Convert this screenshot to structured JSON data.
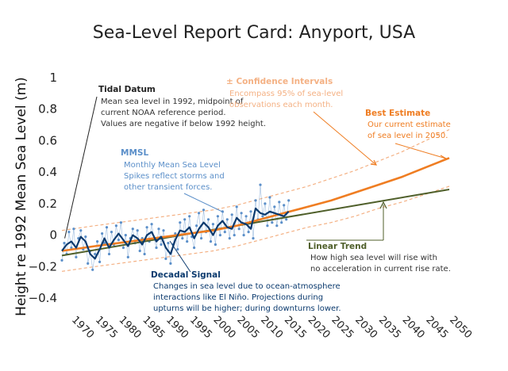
{
  "title": "Sea-Level Report Card: Anyport, USA",
  "colors": {
    "monthly": "#5b8fc9",
    "decadal": "#0b3a6e",
    "best": "#ef7d22",
    "confidence": "#f4b184",
    "trend": "#4f5f2a",
    "tidal": "#222222"
  },
  "annotations": {
    "tidal": {
      "head": "Tidal Datum",
      "lines": [
        "Mean sea level in 1992, midpoint of",
        "current NOAA reference period.",
        "Values are negative if below 1992 height."
      ]
    },
    "confidence": {
      "head": "± Confidence Intervals",
      "lines": [
        "Encompass 95% of sea-level",
        "observations each month."
      ]
    },
    "best": {
      "head": "Best Estimate",
      "lines": [
        "Our current estimate",
        "of sea level in 2050."
      ]
    },
    "mmsl": {
      "head": "MMSL",
      "lines": [
        "Monthly Mean Sea Level",
        "Spikes reflect storms and",
        "other transient forces."
      ]
    },
    "decadal": {
      "head": "Decadal Signal",
      "lines": [
        "Changes in sea level due to ocean-atmosphere",
        "interactions like El Niño. Projections during",
        "upturns will be higher; during downturns lower."
      ]
    },
    "trend": {
      "head": "Linear Trend",
      "lines": [
        "How high sea level will rise with",
        "no acceleration in current rise rate."
      ]
    }
  },
  "chart_data": {
    "type": "line",
    "title": "Sea-Level Report Card: Anyport, USA",
    "xlabel": "",
    "ylabel": "Height re 1992 Mean Sea Level (m)",
    "xlim": [
      1968,
      2050
    ],
    "ylim": [
      -0.45,
      1.0
    ],
    "yticks": [
      -0.4,
      -0.2,
      0,
      0.2,
      0.4,
      0.6,
      0.8,
      1
    ],
    "ytick_labels": [
      "−0.4",
      "−0.2",
      "0",
      "0.2",
      "0.4",
      "0.6",
      "0.8",
      "1"
    ],
    "xticks": [
      1970,
      1975,
      1980,
      1985,
      1990,
      1995,
      2000,
      2005,
      2010,
      2015,
      2020,
      2025,
      2030,
      2035,
      2040,
      2045,
      2050
    ],
    "grid": false,
    "series": [
      {
        "name": "Linear Trend",
        "x": [
          1968,
          2050
        ],
        "y": [
          -0.13,
          0.29
        ]
      },
      {
        "name": "Best Estimate",
        "x": [
          1968,
          1975,
          1980,
          1985,
          1990,
          1995,
          2000,
          2005,
          2010,
          2015,
          2020,
          2025,
          2030,
          2035,
          2040,
          2045,
          2050
        ],
        "y": [
          -0.1,
          -0.07,
          -0.05,
          -0.03,
          -0.01,
          0.01,
          0.03,
          0.06,
          0.1,
          0.14,
          0.18,
          0.22,
          0.27,
          0.32,
          0.37,
          0.43,
          0.49
        ]
      },
      {
        "name": "± Confidence Intervals (upper)",
        "x": [
          1968,
          1975,
          1980,
          1985,
          1990,
          1995,
          2000,
          2005,
          2010,
          2015,
          2020,
          2025,
          2030,
          2035,
          2040,
          2045,
          2050
        ],
        "y": [
          0.03,
          0.06,
          0.08,
          0.1,
          0.12,
          0.14,
          0.16,
          0.19,
          0.23,
          0.27,
          0.31,
          0.36,
          0.41,
          0.47,
          0.53,
          0.6,
          0.67
        ]
      },
      {
        "name": "± Confidence Intervals (lower)",
        "x": [
          1968,
          1975,
          1980,
          1985,
          1990,
          1995,
          2000,
          2005,
          2010,
          2015,
          2020,
          2025,
          2030,
          2035,
          2040,
          2045,
          2050
        ],
        "y": [
          -0.23,
          -0.2,
          -0.18,
          -0.16,
          -0.14,
          -0.12,
          -0.1,
          -0.07,
          -0.03,
          0.01,
          0.05,
          0.08,
          0.12,
          0.17,
          0.21,
          0.26,
          0.31
        ]
      },
      {
        "name": "Decadal Signal",
        "x": [
          1968,
          1969,
          1970,
          1971,
          1972,
          1973,
          1974,
          1975,
          1976,
          1977,
          1978,
          1979,
          1980,
          1981,
          1982,
          1983,
          1984,
          1985,
          1986,
          1987,
          1988,
          1989,
          1990,
          1991,
          1992,
          1993,
          1994,
          1995,
          1996,
          1997,
          1998,
          1999,
          2000,
          2001,
          2002,
          2003,
          2004,
          2005,
          2006,
          2007,
          2008,
          2009,
          2010,
          2011,
          2012,
          2013,
          2014,
          2015,
          2016
        ],
        "y": [
          -0.1,
          -0.06,
          -0.04,
          -0.08,
          -0.01,
          -0.04,
          -0.12,
          -0.15,
          -0.09,
          -0.02,
          -0.08,
          -0.03,
          0.01,
          -0.03,
          -0.07,
          0.0,
          -0.02,
          -0.06,
          0.0,
          0.02,
          -0.04,
          -0.01,
          -0.08,
          -0.12,
          -0.03,
          0.03,
          0.02,
          0.05,
          -0.02,
          0.04,
          0.08,
          0.05,
          0.0,
          0.06,
          0.09,
          0.05,
          0.04,
          0.11,
          0.08,
          0.07,
          0.04,
          0.17,
          0.14,
          0.13,
          0.15,
          0.14,
          0.13,
          0.12,
          0.15
        ]
      },
      {
        "name": "MMSL",
        "x": [
          1968,
          1968.5,
          1969,
          1969.5,
          1970,
          1970.5,
          1971,
          1971.5,
          1972,
          1972.5,
          1973,
          1973.5,
          1974,
          1974.5,
          1975,
          1975.5,
          1976,
          1976.5,
          1977,
          1977.5,
          1978,
          1978.5,
          1979,
          1979.5,
          1980,
          1980.5,
          1981,
          1981.5,
          1982,
          1982.5,
          1983,
          1983.5,
          1984,
          1984.5,
          1985,
          1985.5,
          1986,
          1986.5,
          1987,
          1987.5,
          1988,
          1988.5,
          1989,
          1989.5,
          1990,
          1990.5,
          1991,
          1991.5,
          1992,
          1992.5,
          1993,
          1993.5,
          1994,
          1994.5,
          1995,
          1995.5,
          1996,
          1996.5,
          1997,
          1997.5,
          1998,
          1998.5,
          1999,
          1999.5,
          2000,
          2000.5,
          2001,
          2001.5,
          2002,
          2002.5,
          2003,
          2003.5,
          2004,
          2004.5,
          2005,
          2005.5,
          2006,
          2006.5,
          2007,
          2007.5,
          2008,
          2008.5,
          2009,
          2009.5,
          2010,
          2010.5,
          2011,
          2011.5,
          2012,
          2012.5,
          2013,
          2013.5,
          2014,
          2014.5,
          2015,
          2015.5,
          2016
        ],
        "y": [
          -0.16,
          -0.05,
          -0.12,
          0.02,
          -0.08,
          0.04,
          -0.14,
          -0.02,
          0.03,
          -0.09,
          -0.01,
          -0.18,
          -0.1,
          -0.22,
          -0.12,
          -0.04,
          -0.17,
          0.01,
          -0.05,
          0.05,
          -0.12,
          0.02,
          -0.06,
          0.06,
          -0.03,
          0.08,
          -0.08,
          0.0,
          -0.14,
          -0.02,
          0.04,
          -0.05,
          0.03,
          -0.1,
          -0.02,
          -0.12,
          0.05,
          -0.04,
          0.07,
          -0.02,
          -0.08,
          0.04,
          -0.06,
          0.03,
          -0.15,
          -0.05,
          -0.18,
          -0.06,
          0.01,
          -0.09,
          0.08,
          -0.02,
          0.1,
          -0.04,
          0.12,
          -0.01,
          -0.08,
          0.06,
          0.14,
          -0.02,
          0.16,
          0.02,
          0.1,
          -0.04,
          0.07,
          -0.06,
          0.12,
          0.0,
          0.15,
          0.02,
          0.1,
          -0.02,
          0.13,
          0.0,
          0.18,
          0.04,
          0.14,
          0.0,
          0.12,
          0.02,
          0.15,
          -0.02,
          0.22,
          0.1,
          0.32,
          0.12,
          0.2,
          0.06,
          0.24,
          0.08,
          0.18,
          0.06,
          0.21,
          0.08,
          0.19,
          0.1,
          0.22
        ]
      }
    ]
  }
}
